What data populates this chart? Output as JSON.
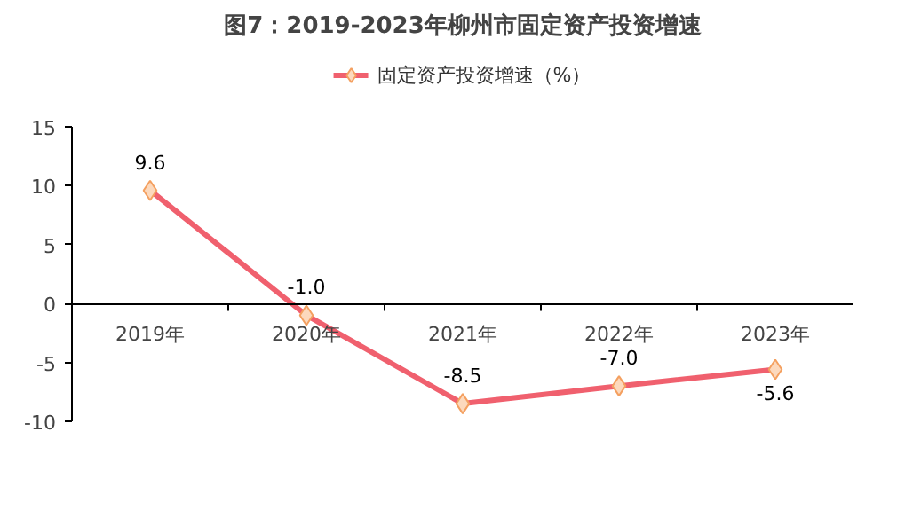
{
  "chart_data": {
    "type": "line",
    "title": "图7：2019-2023年柳州市固定资产投资增速",
    "categories": [
      "2019年",
      "2020年",
      "2021年",
      "2022年",
      "2023年"
    ],
    "series": [
      {
        "name": "固定资产投资增速（%）",
        "color": "#f0606e",
        "values": [
          9.6,
          -1.0,
          -8.5,
          -7.0,
          -5.6
        ],
        "value_labels": [
          "9.6",
          "-1.0",
          "-8.5",
          "-7.0",
          "-5.6"
        ]
      }
    ],
    "ylim": [
      -10,
      15
    ],
    "yticks": [
      -10,
      -5,
      0,
      5,
      10,
      15
    ],
    "marker": "diamond",
    "legend": "top",
    "grid": false
  }
}
